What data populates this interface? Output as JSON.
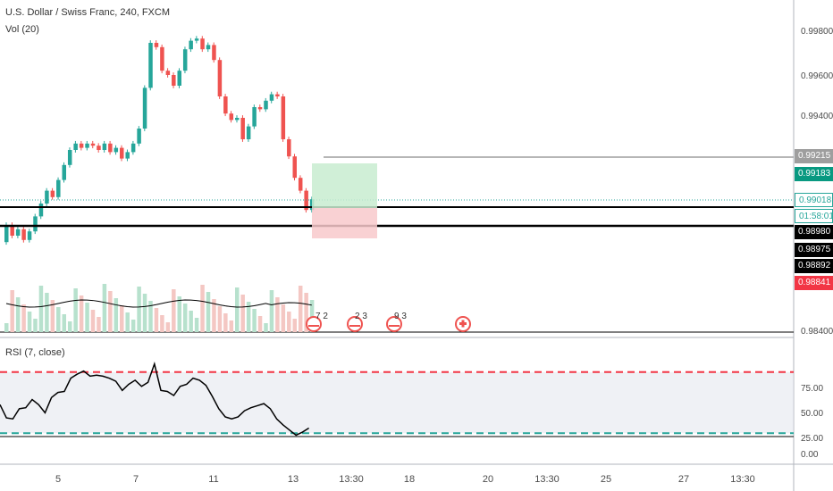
{
  "header": {
    "symbol_title": "U.S. Dollar / Swiss Franc, 240, FXCM",
    "volume_label": "Vol (20)"
  },
  "rsi": {
    "label": "RSI (7, close)",
    "axis_ticks": [
      "75.00",
      "50.00",
      "25.00",
      "0.00"
    ],
    "overbought": 80,
    "oversold": 20,
    "line_color": "#000000",
    "band_color": "#e0e3eb",
    "upper_line_color": "#f23645",
    "lower_line_color": "#26a69a"
  },
  "price_axis": {
    "ticks": [
      "0.99800",
      "0.99600",
      "0.99400",
      "0.98400"
    ]
  },
  "price_tags": {
    "target_level": {
      "text": "0.99215",
      "bg": "#9e9e9e",
      "fg": "#ffffff"
    },
    "take_profit": {
      "text": "0.99183",
      "bg": "#089981",
      "fg": "#ffffff"
    },
    "last_price": {
      "text": "0.99018",
      "bg": "#ffffff",
      "fg": "#26a69a"
    },
    "countdown": {
      "text": "01:58:01",
      "bg": "#ffffff",
      "fg": "#26a69a"
    },
    "support_line": {
      "text": "0.98980",
      "bg": "#000000",
      "fg": "#ffffff"
    },
    "level_a": {
      "text": "0.98975",
      "bg": "#000000",
      "fg": "#ffffff"
    },
    "level_b": {
      "text": "0.98892",
      "bg": "#000000",
      "fg": "#ffffff"
    },
    "stop_loss": {
      "text": "0.98841",
      "bg": "#f23645",
      "fg": "#ffffff"
    }
  },
  "time_axis": {
    "ticks": [
      "5",
      "7",
      "11",
      "13",
      "13:30",
      "18",
      "20",
      "13:30",
      "25",
      "27",
      "13:30"
    ]
  },
  "events": [
    {
      "text": "7 2",
      "icon": "us-flag-icon"
    },
    {
      "text": "2 3",
      "icon": "us-flag-icon"
    },
    {
      "text": "9 3",
      "icon": "us-flag-icon"
    },
    {
      "text": "",
      "icon": "swiss-flag-icon"
    }
  ],
  "colors": {
    "up": "#26a69a",
    "down": "#ef5350",
    "vol_up": "#b7e1cd",
    "vol_down": "#f4c7c3",
    "profit_zone": "#c8ecd0",
    "loss_zone": "#f8c9cb"
  }
}
